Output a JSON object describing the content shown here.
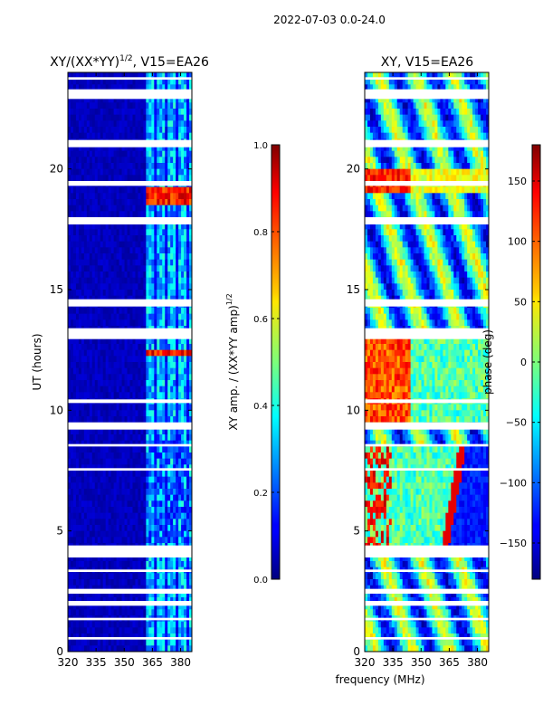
{
  "figure": {
    "suptitle": "2022-07-03 0.0-24.0",
    "xlabel": "frequency (MHz)"
  },
  "chart_data": [
    {
      "type": "heatmap",
      "title_main": "XY/(XX*YY)",
      "title_sup": "1/2",
      "title_tail": ", V15=EA26",
      "xlabel": "",
      "ylabel": "UT (hours)",
      "xlim": [
        320,
        386
      ],
      "ylim": [
        0,
        24
      ],
      "xticks": [
        320,
        335,
        350,
        365,
        380
      ],
      "yticks": [
        0,
        5,
        10,
        15,
        20
      ],
      "colorbar": {
        "label_main": "XY amp. / (XX*YY amp)",
        "label_sup": "1/2",
        "range": [
          0.0,
          1.0
        ],
        "ticks": [
          "0.0",
          "0.2",
          "0.4",
          "0.6",
          "0.8",
          "1.0"
        ]
      }
    },
    {
      "type": "heatmap",
      "title": "XY, V15=EA26",
      "ylabel": "",
      "xlim": [
        320,
        386
      ],
      "ylim": [
        0,
        24
      ],
      "xticks": [
        320,
        335,
        350,
        365,
        380
      ],
      "yticks": [
        0,
        5,
        10,
        15,
        20
      ],
      "colorbar": {
        "label": "phase (deg)",
        "range": [
          -180,
          180
        ],
        "ticks": [
          "150",
          "100",
          "50",
          "0",
          "−50",
          "−100",
          "−150"
        ]
      }
    }
  ],
  "gaps_hours": [
    [
      0.5,
      0.6
    ],
    [
      1.3,
      1.4
    ],
    [
      1.9,
      2.1
    ],
    [
      2.4,
      2.6
    ],
    [
      3.3,
      3.4
    ],
    [
      3.9,
      4.4
    ],
    [
      7.5,
      7.6
    ],
    [
      8.5,
      8.6
    ],
    [
      9.2,
      9.5
    ],
    [
      10.3,
      10.45
    ],
    [
      12.95,
      13.4
    ],
    [
      14.3,
      14.6
    ],
    [
      17.7,
      18.0
    ],
    [
      19.3,
      19.5
    ],
    [
      20.9,
      21.2
    ],
    [
      22.9,
      23.3
    ],
    [
      23.7,
      23.8
    ]
  ]
}
